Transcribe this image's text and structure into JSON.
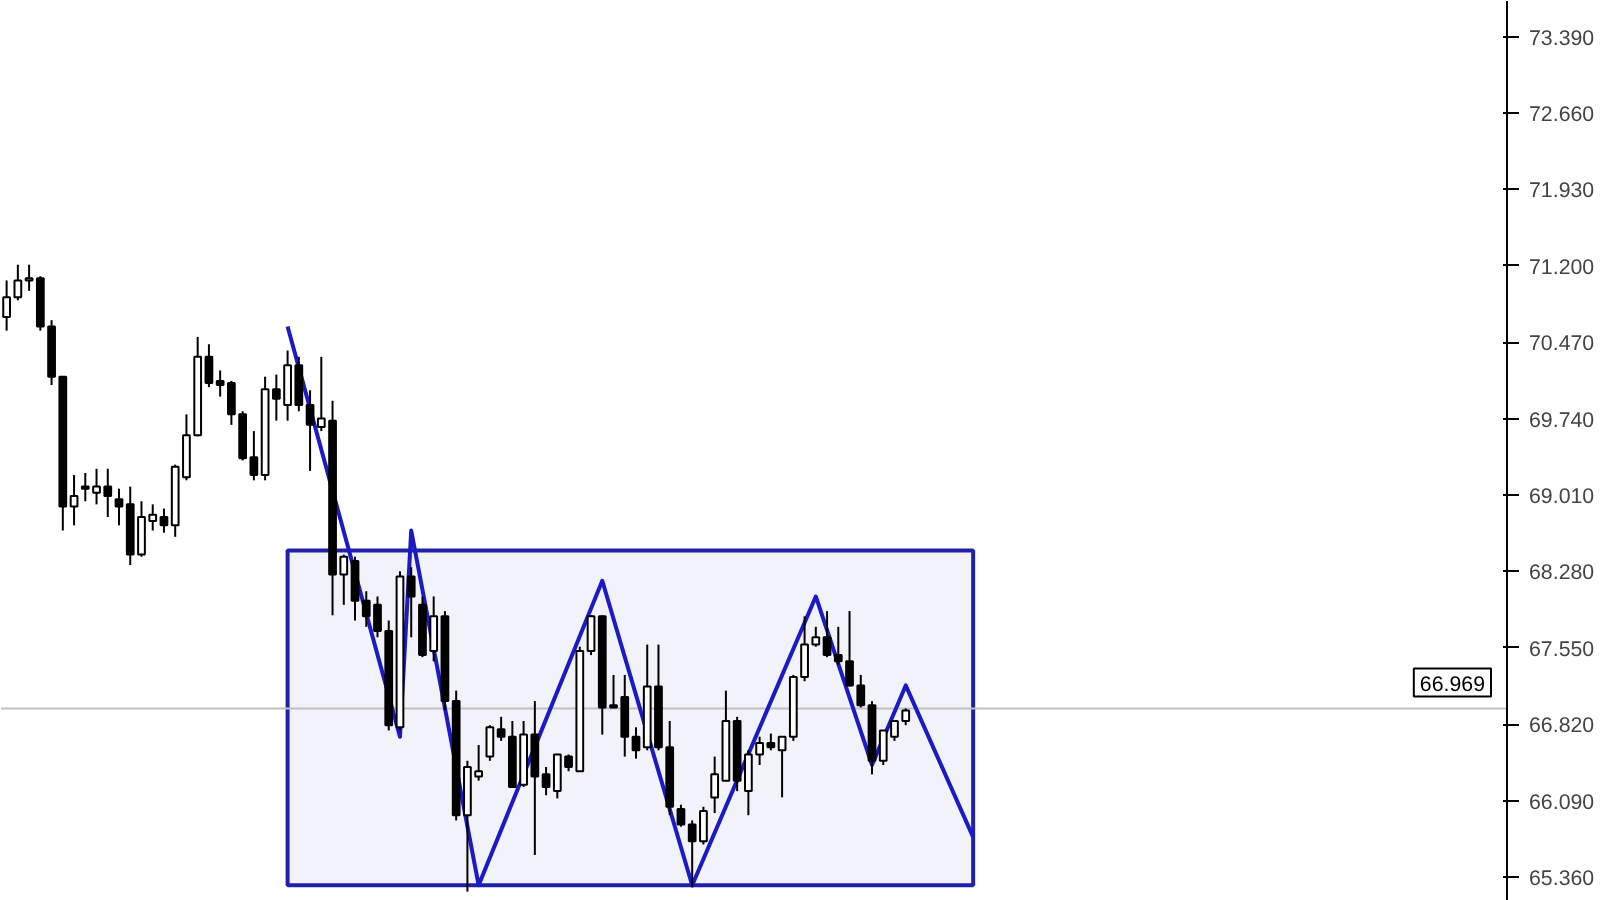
{
  "chart_data": {
    "type": "candlestick",
    "categories": [
      null,
      null,
      null,
      null,
      null,
      null,
      null,
      null,
      null,
      null,
      null,
      null,
      null,
      null,
      null,
      null,
      null,
      null,
      null,
      null,
      null,
      null,
      null,
      null,
      null,
      null,
      null,
      null,
      null,
      null,
      null,
      null,
      null,
      null,
      null,
      null,
      null,
      null,
      null,
      null,
      null,
      null,
      null,
      null,
      null,
      null,
      null,
      null,
      null,
      null,
      null,
      null,
      null,
      null,
      null,
      null,
      null,
      null,
      null,
      null,
      null,
      null,
      null,
      null,
      null,
      null,
      null,
      null,
      null,
      null,
      null,
      null,
      null,
      null,
      null,
      null,
      null,
      null,
      null,
      null,
      null,
      null,
      null,
      null,
      null,
      null,
      null,
      null,
      null,
      null,
      null,
      null,
      null,
      null,
      null,
      null,
      null,
      null,
      null,
      null,
      null,
      null,
      null,
      null,
      null,
      null,
      null,
      null,
      null,
      null,
      null,
      null,
      null,
      null,
      null,
      null,
      null,
      null,
      null,
      null,
      null,
      null,
      null,
      null,
      null,
      null,
      null,
      null,
      null,
      null,
      null,
      null,
      null,
      null
    ],
    "ohlc": [
      [
        70.71,
        71.06,
        70.58,
        70.9
      ],
      [
        70.9,
        71.21,
        70.87,
        71.06
      ],
      [
        71.06,
        71.21,
        70.96,
        71.08
      ],
      [
        71.08,
        71.1,
        70.58,
        70.62
      ],
      [
        70.62,
        70.68,
        70.06,
        70.14
      ],
      [
        70.14,
        70.14,
        68.67,
        68.9
      ],
      [
        68.9,
        69.2,
        68.72,
        69.0
      ],
      [
        69.09,
        69.22,
        68.95,
        69.07
      ],
      [
        69.03,
        69.26,
        68.92,
        69.09
      ],
      [
        69.09,
        69.26,
        68.8,
        69.0
      ],
      [
        68.97,
        69.07,
        68.72,
        68.9
      ],
      [
        68.92,
        69.09,
        68.34,
        68.44
      ],
      [
        68.44,
        68.95,
        68.42,
        68.8
      ],
      [
        68.76,
        68.92,
        68.67,
        68.82
      ],
      [
        68.8,
        68.88,
        68.65,
        68.72
      ],
      [
        68.72,
        69.3,
        68.61,
        69.28
      ],
      [
        69.18,
        69.78,
        69.15,
        69.58
      ],
      [
        69.58,
        70.52,
        69.57,
        70.33
      ],
      [
        70.33,
        70.45,
        70.04,
        70.08
      ],
      [
        70.1,
        70.2,
        69.95,
        70.06
      ],
      [
        70.08,
        70.1,
        69.68,
        69.78
      ],
      [
        69.78,
        69.81,
        69.34,
        69.36
      ],
      [
        69.37,
        69.62,
        69.15,
        69.2
      ],
      [
        69.2,
        70.14,
        69.15,
        70.02
      ],
      [
        70.02,
        70.16,
        69.72,
        69.93
      ],
      [
        69.87,
        70.39,
        69.72,
        70.25
      ],
      [
        70.25,
        70.33,
        69.81,
        69.87
      ],
      [
        69.87,
        70.01,
        69.24,
        69.68
      ],
      [
        69.66,
        70.33,
        69.62,
        69.74
      ],
      [
        69.72,
        69.91,
        67.86,
        68.25
      ],
      [
        68.25,
        68.44,
        67.96,
        68.42
      ],
      [
        68.38,
        68.42,
        67.81,
        68.0
      ],
      [
        68.0,
        68.09,
        67.75,
        67.85
      ],
      [
        67.96,
        68.04,
        67.65,
        67.71
      ],
      [
        67.71,
        67.81,
        66.76,
        66.81
      ],
      [
        66.79,
        68.28,
        66.76,
        68.23
      ],
      [
        68.23,
        68.32,
        67.65,
        68.04
      ],
      [
        67.96,
        68.04,
        67.46,
        67.48
      ],
      [
        67.52,
        68.04,
        67.42,
        67.85
      ],
      [
        67.85,
        67.9,
        66.95,
        67.04
      ],
      [
        67.04,
        67.14,
        65.9,
        65.95
      ],
      [
        65.95,
        66.47,
        65.22,
        66.41
      ],
      [
        66.32,
        66.62,
        66.28,
        66.37
      ],
      [
        66.51,
        66.81,
        66.47,
        66.79
      ],
      [
        66.77,
        66.89,
        66.66,
        66.7
      ],
      [
        66.7,
        66.85,
        66.22,
        66.22
      ],
      [
        66.24,
        66.85,
        66.22,
        66.72
      ],
      [
        66.72,
        67.04,
        65.57,
        66.32
      ],
      [
        66.34,
        66.41,
        66.14,
        66.22
      ],
      [
        66.18,
        66.53,
        66.11,
        66.53
      ],
      [
        66.51,
        66.53,
        66.37,
        66.41
      ],
      [
        66.37,
        67.56,
        66.37,
        67.52
      ],
      [
        67.52,
        67.86,
        67.48,
        67.85
      ],
      [
        67.85,
        67.86,
        66.72,
        66.98
      ],
      [
        67.0,
        67.29,
        66.98,
        66.98
      ],
      [
        67.08,
        67.29,
        66.51,
        66.7
      ],
      [
        66.7,
        66.79,
        66.49,
        66.57
      ],
      [
        66.6,
        67.58,
        66.57,
        67.18
      ],
      [
        67.18,
        67.58,
        66.57,
        66.6
      ],
      [
        66.6,
        66.85,
        65.95,
        66.03
      ],
      [
        66.01,
        66.05,
        65.84,
        65.86
      ],
      [
        65.86,
        65.9,
        65.26,
        65.7
      ],
      [
        65.7,
        66.03,
        65.67,
        65.99
      ],
      [
        66.12,
        66.51,
        65.97,
        66.34
      ],
      [
        66.28,
        67.14,
        66.28,
        66.85
      ],
      [
        66.85,
        66.89,
        66.18,
        66.28
      ],
      [
        66.18,
        66.57,
        65.95,
        66.53
      ],
      [
        66.53,
        66.7,
        66.43,
        66.64
      ],
      [
        66.64,
        66.73,
        66.57,
        66.6
      ],
      [
        66.57,
        66.7,
        66.12,
        66.7
      ],
      [
        66.7,
        67.29,
        66.66,
        67.27
      ],
      [
        67.27,
        67.85,
        67.23,
        67.58
      ],
      [
        67.58,
        67.75,
        67.56,
        67.65
      ],
      [
        67.65,
        67.9,
        67.46,
        67.48
      ],
      [
        67.48,
        67.75,
        67.39,
        67.42
      ],
      [
        67.42,
        67.9,
        67.18,
        67.19
      ],
      [
        67.19,
        67.29,
        66.98,
        67.0
      ],
      [
        67.0,
        67.04,
        66.34,
        66.47
      ],
      [
        66.47,
        66.76,
        66.43,
        66.76
      ],
      [
        66.7,
        66.85,
        66.66,
        66.85
      ],
      [
        66.85,
        66.97,
        66.81,
        66.95
      ],
      null,
      null,
      null,
      null,
      null,
      null,
      null,
      null,
      null,
      null,
      null,
      null,
      null,
      null,
      null,
      null,
      null,
      null,
      null,
      null,
      null,
      null,
      null,
      null,
      null,
      null,
      null,
      null,
      null,
      null,
      null,
      null,
      null,
      null,
      null,
      null,
      null,
      null,
      null,
      null,
      null,
      null,
      null,
      null,
      null,
      null,
      null,
      null,
      null,
      null,
      null,
      null,
      null
    ],
    "series": [
      {
        "type": "line",
        "color": "#1a1ac8",
        "values": [
          null,
          null,
          null,
          null,
          null,
          null,
          null,
          null,
          null,
          null,
          null,
          null,
          null,
          null,
          null,
          null,
          null,
          null,
          null,
          null,
          null,
          null,
          null,
          null,
          null,
          70.62,
          null,
          null,
          null,
          null,
          null,
          null,
          null,
          null,
          null,
          66.7,
          68.67,
          null,
          null,
          null,
          null,
          null,
          65.28,
          null,
          null,
          null,
          null,
          null,
          null,
          null,
          null,
          null,
          null,
          68.19,
          null,
          null,
          null,
          null,
          null,
          null,
          null,
          65.28,
          null,
          null,
          null,
          null,
          null,
          null,
          null,
          null,
          null,
          null,
          68.04,
          null,
          null,
          null,
          null,
          66.43,
          null,
          null,
          67.19,
          null,
          null,
          null,
          null,
          null,
          65.74,
          null,
          null,
          null,
          null,
          null,
          null,
          null,
          null,
          null,
          null,
          null,
          null,
          null,
          null,
          null,
          null,
          null,
          null,
          null,
          null,
          null,
          null,
          null,
          null,
          null,
          null,
          null,
          null,
          null,
          null,
          null,
          null,
          null,
          null,
          null,
          null,
          null,
          null,
          null,
          null,
          null,
          null,
          null,
          null,
          null,
          null,
          null
        ]
      }
    ],
    "bands": [
      {
        "axis": "y",
        "from": 65.28,
        "to": 68.48,
        "color": "#2020a8"
      }
    ],
    "ylim": [
      65.13,
      73.73
    ],
    "yticks": [
      {
        "value": 73.39,
        "label": "73.390"
      },
      {
        "value": 72.66,
        "label": "72.660"
      },
      {
        "value": 71.93,
        "label": "71.930"
      },
      {
        "value": 71.2,
        "label": "71.200"
      },
      {
        "value": 70.47,
        "label": "70.470"
      },
      {
        "value": 69.74,
        "label": "69.740"
      },
      {
        "value": 69.01,
        "label": "69.010"
      },
      {
        "value": 68.28,
        "label": "68.280"
      },
      {
        "value": 67.55,
        "label": "67.550"
      },
      {
        "value": 66.82,
        "label": "66.820"
      },
      {
        "value": 66.09,
        "label": "66.090"
      },
      {
        "value": 65.36,
        "label": "65.360"
      }
    ],
    "ref_lines": [
      {
        "axis": "y",
        "value": 66.969,
        "label": "66.969",
        "color": "#c0c0c0"
      }
    ]
  }
}
